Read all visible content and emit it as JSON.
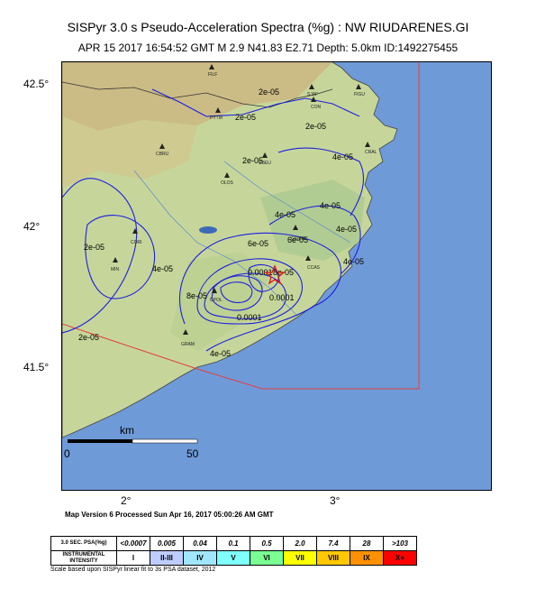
{
  "header": {
    "title": "SISPyr 3.0 s Pseudo-Acceleration Spectra (%g) : NW RIUDARENES.GI",
    "subtitle": "APR 15 2017 16:54:52  GMT    M 2.9    N41.83 E2.71    Depth: 5.0km    ID:1492275455"
  },
  "axes": {
    "lat_labels": [
      "42.5°",
      "42°",
      "41.5°"
    ],
    "lon_labels": [
      "2°",
      "3°"
    ]
  },
  "contours": [
    "2e-05",
    "2e-05",
    "2e-05",
    "2e-05",
    "2e-05",
    "2e-05",
    "4e-05",
    "4e-05",
    "4e-05",
    "4e-05",
    "4e-05",
    "4e-05",
    "4e-05",
    "6e-05",
    "6e-05",
    "8e-05",
    "8e-05",
    "0.0001",
    "0.0001",
    "0.0001"
  ],
  "towns": [
    "FILF",
    "SJAF",
    "FIGU",
    "CON",
    "PYTM",
    "CBRU",
    "CBEU",
    "CRAL",
    "OLOS",
    "CORI",
    "CSIBR",
    "CCAS",
    "MIN",
    "CPOL",
    "GRAM"
  ],
  "scale": {
    "unit": "km",
    "start": "0",
    "end": "50"
  },
  "version_text": "Map Version 6 Processed Sun Apr 16, 2017 05:00:26 AM GMT",
  "legend": {
    "psa_header": "3.0 SEC. PSA(%g)",
    "intensity_header": "INSTRUMENTAL INTENSITY",
    "psa_values": [
      "<0.0007",
      "0.005",
      "0.04",
      "0.1",
      "0.5",
      "2.0",
      "7.4",
      "28",
      ">103"
    ],
    "intensity_values": [
      "I",
      "II-III",
      "IV",
      "V",
      "VI",
      "VII",
      "VIII",
      "IX",
      "X+"
    ],
    "colors": [
      "#ffffff",
      "#bfccff",
      "#a0e6ff",
      "#80ffff",
      "#7aff93",
      "#ffff00",
      "#ffc800",
      "#ff9100",
      "#ff0000"
    ]
  },
  "footnote": "Scale based upon SISPyr linear fit to 3s PSA dataset, 2012"
}
